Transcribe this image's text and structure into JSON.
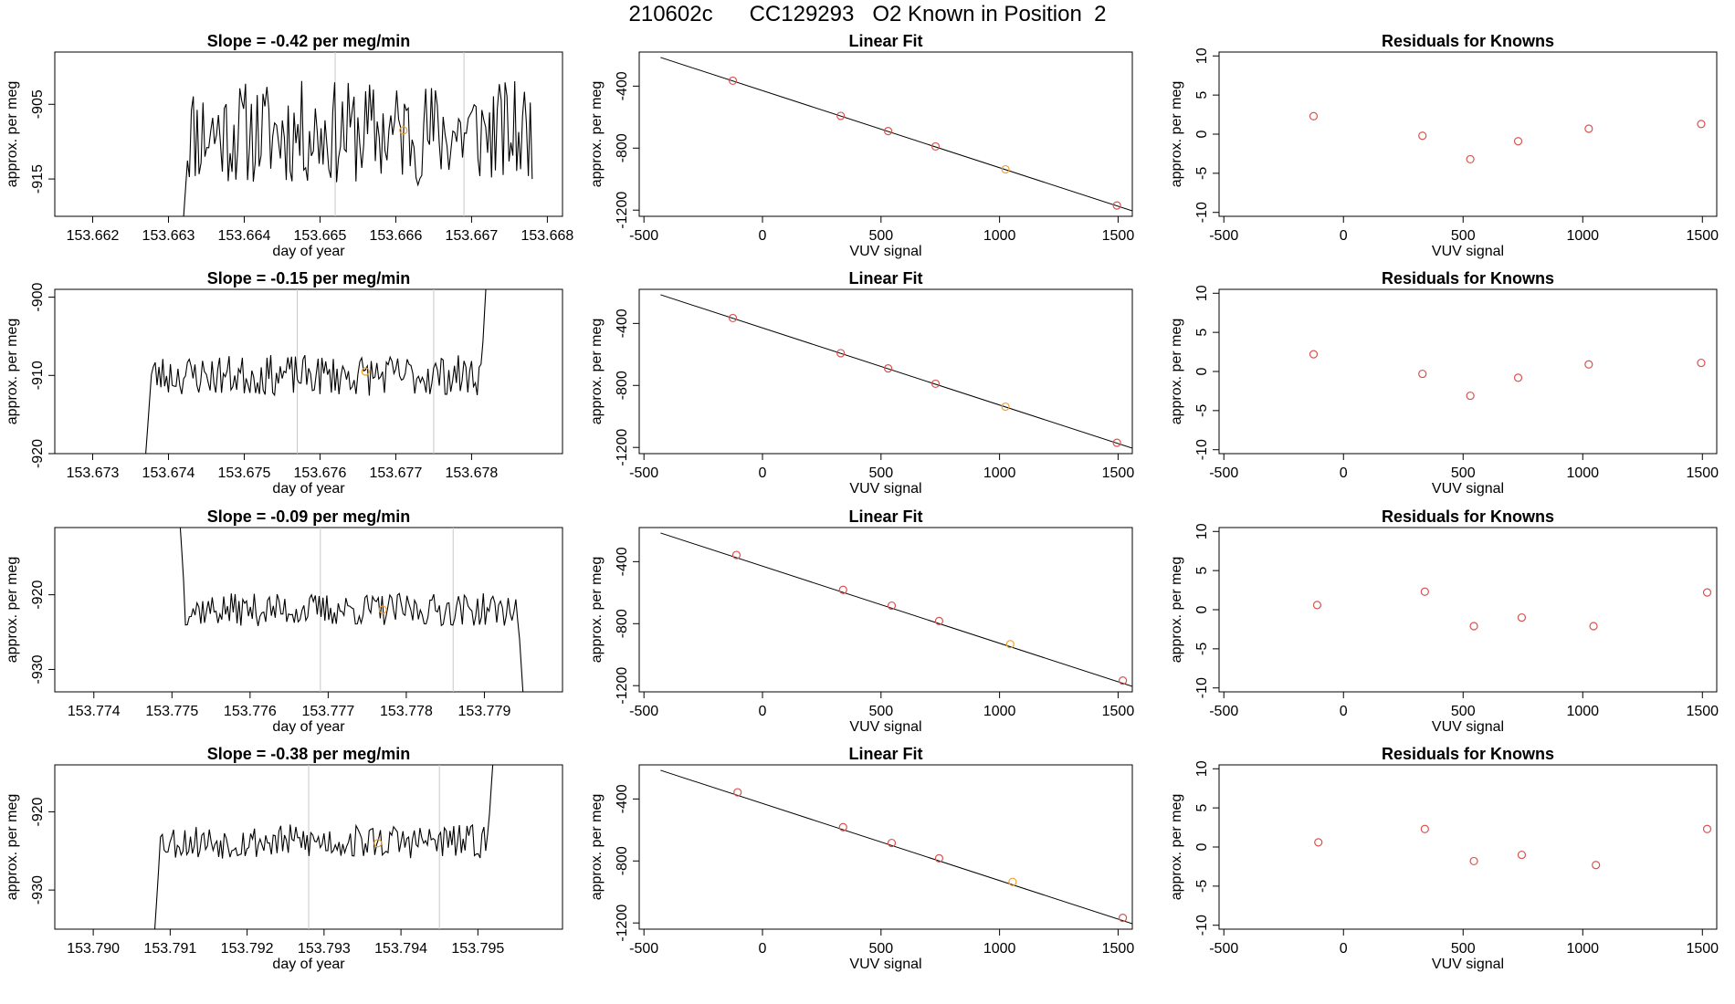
{
  "figure_title": "210602c      CC129293   O2 Known in Position  2",
  "colors": {
    "axis": "#000000",
    "trace": "#000000",
    "marker_red": "#d9534f",
    "marker_orange": "#f0a030",
    "guide": "#c8c8c8"
  },
  "chart_data": [
    {
      "type": "line",
      "panel": "timeseries",
      "row": 1,
      "title": "Slope =  -0.42  per meg/min",
      "xlabel": "day of year",
      "ylabel": "approx. per meg",
      "xlim": [
        153.6615,
        153.6682
      ],
      "ylim": [
        -920,
        -898
      ],
      "xticks": [
        153.662,
        153.663,
        153.664,
        153.665,
        153.666,
        153.667,
        153.668
      ],
      "xtick_labels": [
        "153.662",
        "153.663",
        "153.664",
        "153.665",
        "153.666",
        "153.667",
        "153.668"
      ],
      "yticks": [
        -915,
        -905
      ],
      "ytick_labels": [
        "-915",
        "-905"
      ],
      "vlines": [
        153.6652,
        153.6669
      ],
      "marker": {
        "x": 153.6661,
        "y": -908.5
      },
      "trace": {
        "x_start": 153.6632,
        "x_end": 153.6678,
        "base": -908.8,
        "amp": 7,
        "seed": 11,
        "head_spike": -920
      }
    },
    {
      "type": "line",
      "panel": "fit",
      "row": 1,
      "title": "Linear Fit",
      "xlabel": "VUV signal",
      "ylabel": "approx. per meg",
      "xlim": [
        -520,
        1560
      ],
      "ylim": [
        -1240,
        -180
      ],
      "xticks": [
        -500,
        0,
        500,
        1000,
        1500
      ],
      "xtick_labels": [
        "-500",
        "0",
        "500",
        "1000",
        "1500"
      ],
      "yticks": [
        -1200,
        -800,
        -400
      ],
      "ytick_labels": [
        "-1200",
        "-800",
        "-400"
      ],
      "line": {
        "x": [
          -430,
          1560
        ],
        "y": [
          -215,
          -1205
        ]
      },
      "points": {
        "x": [
          -125,
          330,
          530,
          730,
          1025,
          1495
        ],
        "y": [
          -365,
          -592,
          -690,
          -789,
          -937,
          -1170
        ]
      },
      "highlight_index": 4
    },
    {
      "type": "scatter",
      "panel": "residuals",
      "row": 1,
      "title": "Residuals for Knowns",
      "xlabel": "VUV signal",
      "ylabel": "approx. per meg",
      "xlim": [
        -520,
        1560
      ],
      "ylim": [
        -10.5,
        10.5
      ],
      "xticks": [
        -500,
        0,
        500,
        1000,
        1500
      ],
      "xtick_labels": [
        "-500",
        "0",
        "500",
        "1000",
        "1500"
      ],
      "yticks": [
        -10,
        -5,
        0,
        5,
        10
      ],
      "ytick_labels": [
        "-10",
        "-5",
        "0",
        "5",
        "10"
      ],
      "points": {
        "x": [
          -125,
          330,
          530,
          730,
          1025,
          1495
        ],
        "y": [
          2.3,
          -0.2,
          -3.2,
          -0.9,
          0.7,
          1.3
        ]
      }
    },
    {
      "type": "line",
      "panel": "timeseries",
      "row": 2,
      "title": "Slope =  -0.15  per meg/min",
      "xlabel": "day of year",
      "ylabel": "approx. per meg",
      "xlim": [
        153.6725,
        153.6792
      ],
      "ylim": [
        -920,
        -899
      ],
      "xticks": [
        153.673,
        153.674,
        153.675,
        153.676,
        153.677,
        153.678
      ],
      "xtick_labels": [
        "153.673",
        "153.674",
        "153.675",
        "153.676",
        "153.677",
        "153.678"
      ],
      "yticks": [
        -920,
        -910,
        -900
      ],
      "ytick_labels": [
        "-920",
        "-910",
        "-900"
      ],
      "vlines": [
        153.6757,
        153.6775
      ],
      "marker": {
        "x": 153.6766,
        "y": -909.5
      },
      "trace": {
        "x_start": 153.6737,
        "x_end": 153.6782,
        "base": -910,
        "amp": 2.6,
        "seed": 23,
        "head_spike": -920,
        "tail_spike": -897
      }
    },
    {
      "type": "line",
      "panel": "fit",
      "row": 2,
      "title": "Linear Fit",
      "xlabel": "VUV signal",
      "ylabel": "approx. per meg",
      "xlim": [
        -520,
        1560
      ],
      "ylim": [
        -1240,
        -180
      ],
      "xticks": [
        -500,
        0,
        500,
        1000,
        1500
      ],
      "xtick_labels": [
        "-500",
        "0",
        "500",
        "1000",
        "1500"
      ],
      "yticks": [
        -1200,
        -800,
        -400
      ],
      "ytick_labels": [
        "-1200",
        "-800",
        "-400"
      ],
      "line": {
        "x": [
          -430,
          1560
        ],
        "y": [
          -215,
          -1205
        ]
      },
      "points": {
        "x": [
          -125,
          330,
          530,
          730,
          1025,
          1495
        ],
        "y": [
          -365,
          -592,
          -690,
          -789,
          -937,
          -1170
        ]
      },
      "highlight_index": 4
    },
    {
      "type": "scatter",
      "panel": "residuals",
      "row": 2,
      "title": "Residuals for Knowns",
      "xlabel": "VUV signal",
      "ylabel": "approx. per meg",
      "xlim": [
        -520,
        1560
      ],
      "ylim": [
        -10.5,
        10.5
      ],
      "xticks": [
        -500,
        0,
        500,
        1000,
        1500
      ],
      "xtick_labels": [
        "-500",
        "0",
        "500",
        "1000",
        "1500"
      ],
      "yticks": [
        -10,
        -5,
        0,
        5,
        10
      ],
      "ytick_labels": [
        "-10",
        "-5",
        "0",
        "5",
        "10"
      ],
      "points": {
        "x": [
          -125,
          330,
          530,
          730,
          1025,
          1495
        ],
        "y": [
          2.2,
          -0.3,
          -3.1,
          -0.8,
          0.9,
          1.1
        ]
      }
    },
    {
      "type": "line",
      "panel": "timeseries",
      "row": 3,
      "title": "Slope =  -0.09  per meg/min",
      "xlabel": "day of year",
      "ylabel": "approx. per meg",
      "xlim": [
        153.7735,
        153.78
      ],
      "ylim": [
        -933,
        -911
      ],
      "xticks": [
        153.774,
        153.775,
        153.776,
        153.777,
        153.778,
        153.779
      ],
      "xtick_labels": [
        "153.774",
        "153.775",
        "153.776",
        "153.777",
        "153.778",
        "153.779"
      ],
      "yticks": [
        -930,
        -920
      ],
      "ytick_labels": [
        "-930",
        "-920"
      ],
      "vlines": [
        153.7769,
        153.7786
      ],
      "marker": {
        "x": 153.7777,
        "y": -922
      },
      "trace": {
        "x_start": 153.7751,
        "x_end": 153.7795,
        "base": -922,
        "amp": 2.2,
        "seed": 37,
        "head_spike": -910,
        "tail_spike": -934
      }
    },
    {
      "type": "line",
      "panel": "fit",
      "row": 3,
      "title": "Linear Fit",
      "xlabel": "VUV signal",
      "ylabel": "approx. per meg",
      "xlim": [
        -520,
        1560
      ],
      "ylim": [
        -1240,
        -180
      ],
      "xticks": [
        -500,
        0,
        500,
        1000,
        1500
      ],
      "xtick_labels": [
        "-500",
        "0",
        "500",
        "1000",
        "1500"
      ],
      "yticks": [
        -1200,
        -800,
        -400
      ],
      "ytick_labels": [
        "-1200",
        "-800",
        "-400"
      ],
      "line": {
        "x": [
          -430,
          1560
        ],
        "y": [
          -215,
          -1205
        ]
      },
      "points": {
        "x": [
          -110,
          340,
          545,
          745,
          1045,
          1520
        ],
        "y": [
          -357,
          -582,
          -684,
          -783,
          -932,
          -1167
        ]
      },
      "highlight_index": 4
    },
    {
      "type": "scatter",
      "panel": "residuals",
      "row": 3,
      "title": "Residuals for Knowns",
      "xlabel": "VUV signal",
      "ylabel": "approx. per meg",
      "xlim": [
        -520,
        1560
      ],
      "ylim": [
        -10.5,
        10.5
      ],
      "xticks": [
        -500,
        0,
        500,
        1000,
        1500
      ],
      "xtick_labels": [
        "-500",
        "0",
        "500",
        "1000",
        "1500"
      ],
      "yticks": [
        -10,
        -5,
        0,
        5,
        10
      ],
      "ytick_labels": [
        "-10",
        "-5",
        "0",
        "5",
        "10"
      ],
      "points": {
        "x": [
          -110,
          340,
          545,
          745,
          1045,
          1520
        ],
        "y": [
          0.6,
          2.3,
          -2.1,
          -1.0,
          -2.1,
          2.2
        ]
      }
    },
    {
      "type": "line",
      "panel": "timeseries",
      "row": 4,
      "title": "Slope =  -0.38  per meg/min",
      "xlabel": "day of year",
      "ylabel": "approx. per meg",
      "xlim": [
        153.7895,
        153.7961
      ],
      "ylim": [
        -935,
        -914
      ],
      "xticks": [
        153.79,
        153.791,
        153.792,
        153.793,
        153.794,
        153.795
      ],
      "xtick_labels": [
        "153.790",
        "153.791",
        "153.792",
        "153.793",
        "153.794",
        "153.795"
      ],
      "yticks": [
        -930,
        -920
      ],
      "ytick_labels": [
        "-930",
        "-920"
      ],
      "vlines": [
        153.7928,
        153.7945
      ],
      "marker": {
        "x": 153.7937,
        "y": -924
      },
      "trace": {
        "x_start": 153.7908,
        "x_end": 153.7952,
        "base": -923.8,
        "amp": 2.2,
        "seed": 53,
        "head_spike": -935,
        "tail_spike": -913
      }
    },
    {
      "type": "line",
      "panel": "fit",
      "row": 4,
      "title": "Linear Fit",
      "xlabel": "VUV signal",
      "ylabel": "approx. per meg",
      "xlim": [
        -520,
        1560
      ],
      "ylim": [
        -1240,
        -180
      ],
      "xticks": [
        -500,
        0,
        500,
        1000,
        1500
      ],
      "xtick_labels": [
        "-500",
        "0",
        "500",
        "1000",
        "1500"
      ],
      "yticks": [
        -1200,
        -800,
        -400
      ],
      "ytick_labels": [
        "-1200",
        "-800",
        "-400"
      ],
      "line": {
        "x": [
          -430,
          1560
        ],
        "y": [
          -215,
          -1205
        ]
      },
      "points": {
        "x": [
          -105,
          340,
          545,
          745,
          1055,
          1520
        ],
        "y": [
          -357,
          -582,
          -684,
          -783,
          -935,
          -1167
        ]
      },
      "highlight_index": 4
    },
    {
      "type": "scatter",
      "panel": "residuals",
      "row": 4,
      "title": "Residuals for Knowns",
      "xlabel": "VUV signal",
      "ylabel": "approx. per meg",
      "xlim": [
        -520,
        1560
      ],
      "ylim": [
        -10.5,
        10.5
      ],
      "xticks": [
        -500,
        0,
        500,
        1000,
        1500
      ],
      "xtick_labels": [
        "-500",
        "0",
        "500",
        "1000",
        "1500"
      ],
      "yticks": [
        -10,
        -5,
        0,
        5,
        10
      ],
      "ytick_labels": [
        "-10",
        "-5",
        "0",
        "5",
        "10"
      ],
      "points": {
        "x": [
          -105,
          340,
          545,
          745,
          1055,
          1520
        ],
        "y": [
          0.6,
          2.3,
          -1.8,
          -1.0,
          -2.3,
          2.3
        ]
      }
    }
  ]
}
